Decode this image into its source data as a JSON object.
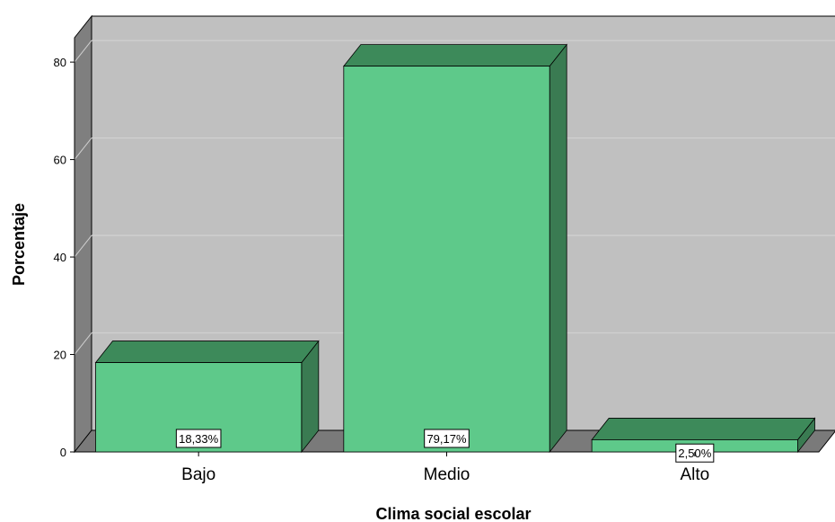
{
  "chart_data": {
    "type": "bar",
    "categories": [
      "Bajo",
      "Medio",
      "Alto"
    ],
    "values": [
      18.33,
      79.17,
      2.5
    ],
    "data_labels": [
      "18,33%",
      "79,17%",
      "2,50%"
    ],
    "xlabel": "Clima social escolar",
    "ylabel": "Porcentaje",
    "ylim": [
      0,
      85
    ],
    "yticks": [
      0,
      20,
      40,
      60,
      80
    ],
    "grid": true,
    "three_d": true,
    "colors": {
      "bar_front": "#5ec98a",
      "bar_side": "#3a7b52",
      "bar_top": "#3d8a5a",
      "wall": "#c0c0c0",
      "wall_side": "#7f7f7f",
      "floor": "#7a7a7a",
      "gridline": "#d0d0d0"
    }
  }
}
